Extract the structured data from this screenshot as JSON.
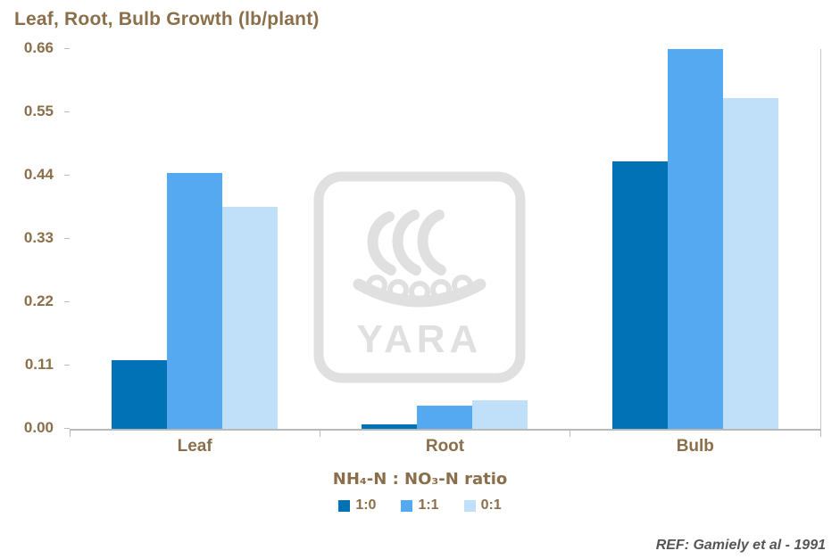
{
  "title": "Leaf, Root, Bulb Growth (lb/plant)",
  "watermark": {
    "brand": "YARA"
  },
  "ref_note": "REF: Gamiely et al - 1991",
  "chart_data": {
    "type": "bar",
    "title": "Leaf, Root, Bulb Growth (lb/plant)",
    "categories": [
      "Leaf",
      "Root",
      "Bulb"
    ],
    "series": [
      {
        "name": "1:0",
        "color": "#0072B5",
        "values": [
          0.12,
          0.008,
          0.465
        ]
      },
      {
        "name": "1:1",
        "color": "#55A9F1",
        "values": [
          0.445,
          0.04,
          0.66
        ]
      },
      {
        "name": "0:1",
        "color": "#BFE0F8",
        "values": [
          0.385,
          0.05,
          0.575
        ]
      }
    ],
    "xlabel": "NH₄-N : NO₃-N ratio",
    "ylabel": "",
    "ylim": [
      0,
      0.66
    ],
    "yticks": [
      0.0,
      0.11,
      0.22,
      0.33,
      0.44,
      0.55,
      0.66
    ],
    "legend_position": "bottom",
    "grid": false
  }
}
